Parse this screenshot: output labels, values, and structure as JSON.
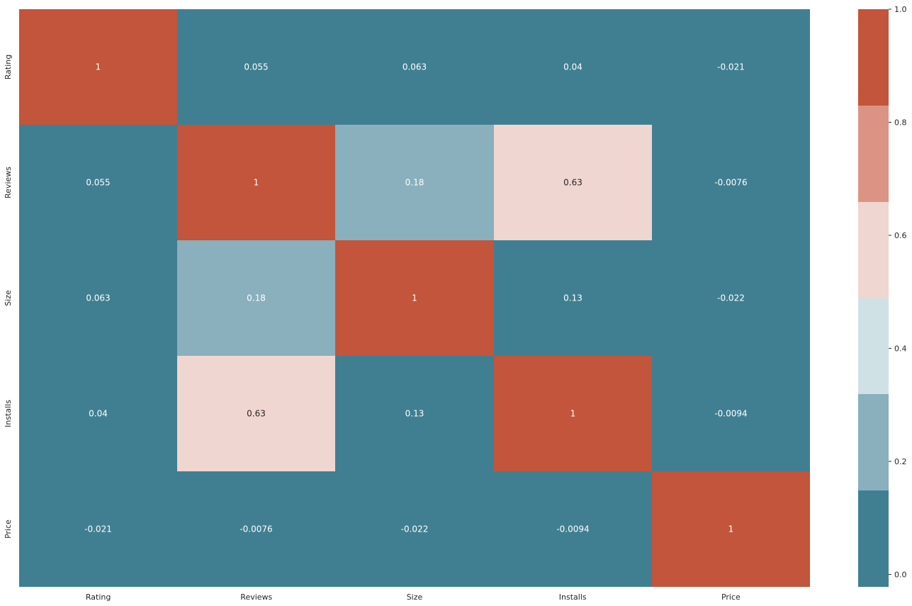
{
  "chart_data": {
    "type": "heatmap",
    "title": "",
    "xlabel": "",
    "ylabel": "",
    "x_categories": [
      "Rating",
      "Reviews",
      "Size",
      "Installs",
      "Price"
    ],
    "y_categories": [
      "Rating",
      "Reviews",
      "Size",
      "Installs",
      "Price"
    ],
    "values": [
      [
        1,
        0.055,
        0.063,
        0.04,
        -0.021
      ],
      [
        0.055,
        1,
        0.18,
        0.63,
        -0.0076
      ],
      [
        0.063,
        0.18,
        1,
        0.13,
        -0.022
      ],
      [
        0.04,
        0.63,
        0.13,
        1,
        -0.0094
      ],
      [
        -0.021,
        -0.0076,
        -0.022,
        -0.0094,
        1
      ]
    ],
    "annotations": [
      [
        "1",
        "0.055",
        "0.063",
        "0.04",
        "-0.021"
      ],
      [
        "0.055",
        "1",
        "0.18",
        "0.63",
        "-0.0076"
      ],
      [
        "0.063",
        "0.18",
        "1",
        "0.13",
        "-0.022"
      ],
      [
        "0.04",
        "0.63",
        "0.13",
        "1",
        "-0.0094"
      ],
      [
        "-0.021",
        "-0.0076",
        "-0.022",
        "-0.0094",
        "1"
      ]
    ],
    "colorbar": {
      "vmin": -0.022,
      "vmax": 1,
      "ticks": [
        0.0,
        0.2,
        0.4,
        0.6,
        0.8,
        1.0
      ],
      "tick_labels": [
        "0.0",
        "0.2",
        "0.4",
        "0.6",
        "0.8",
        "1.0"
      ],
      "colors": [
        "#407f92",
        "#8aafbd",
        "#d0e1e5",
        "#f0d6d0",
        "#db9483",
        "#c2553b"
      ]
    },
    "grid": false,
    "legend": "right colorbar"
  }
}
